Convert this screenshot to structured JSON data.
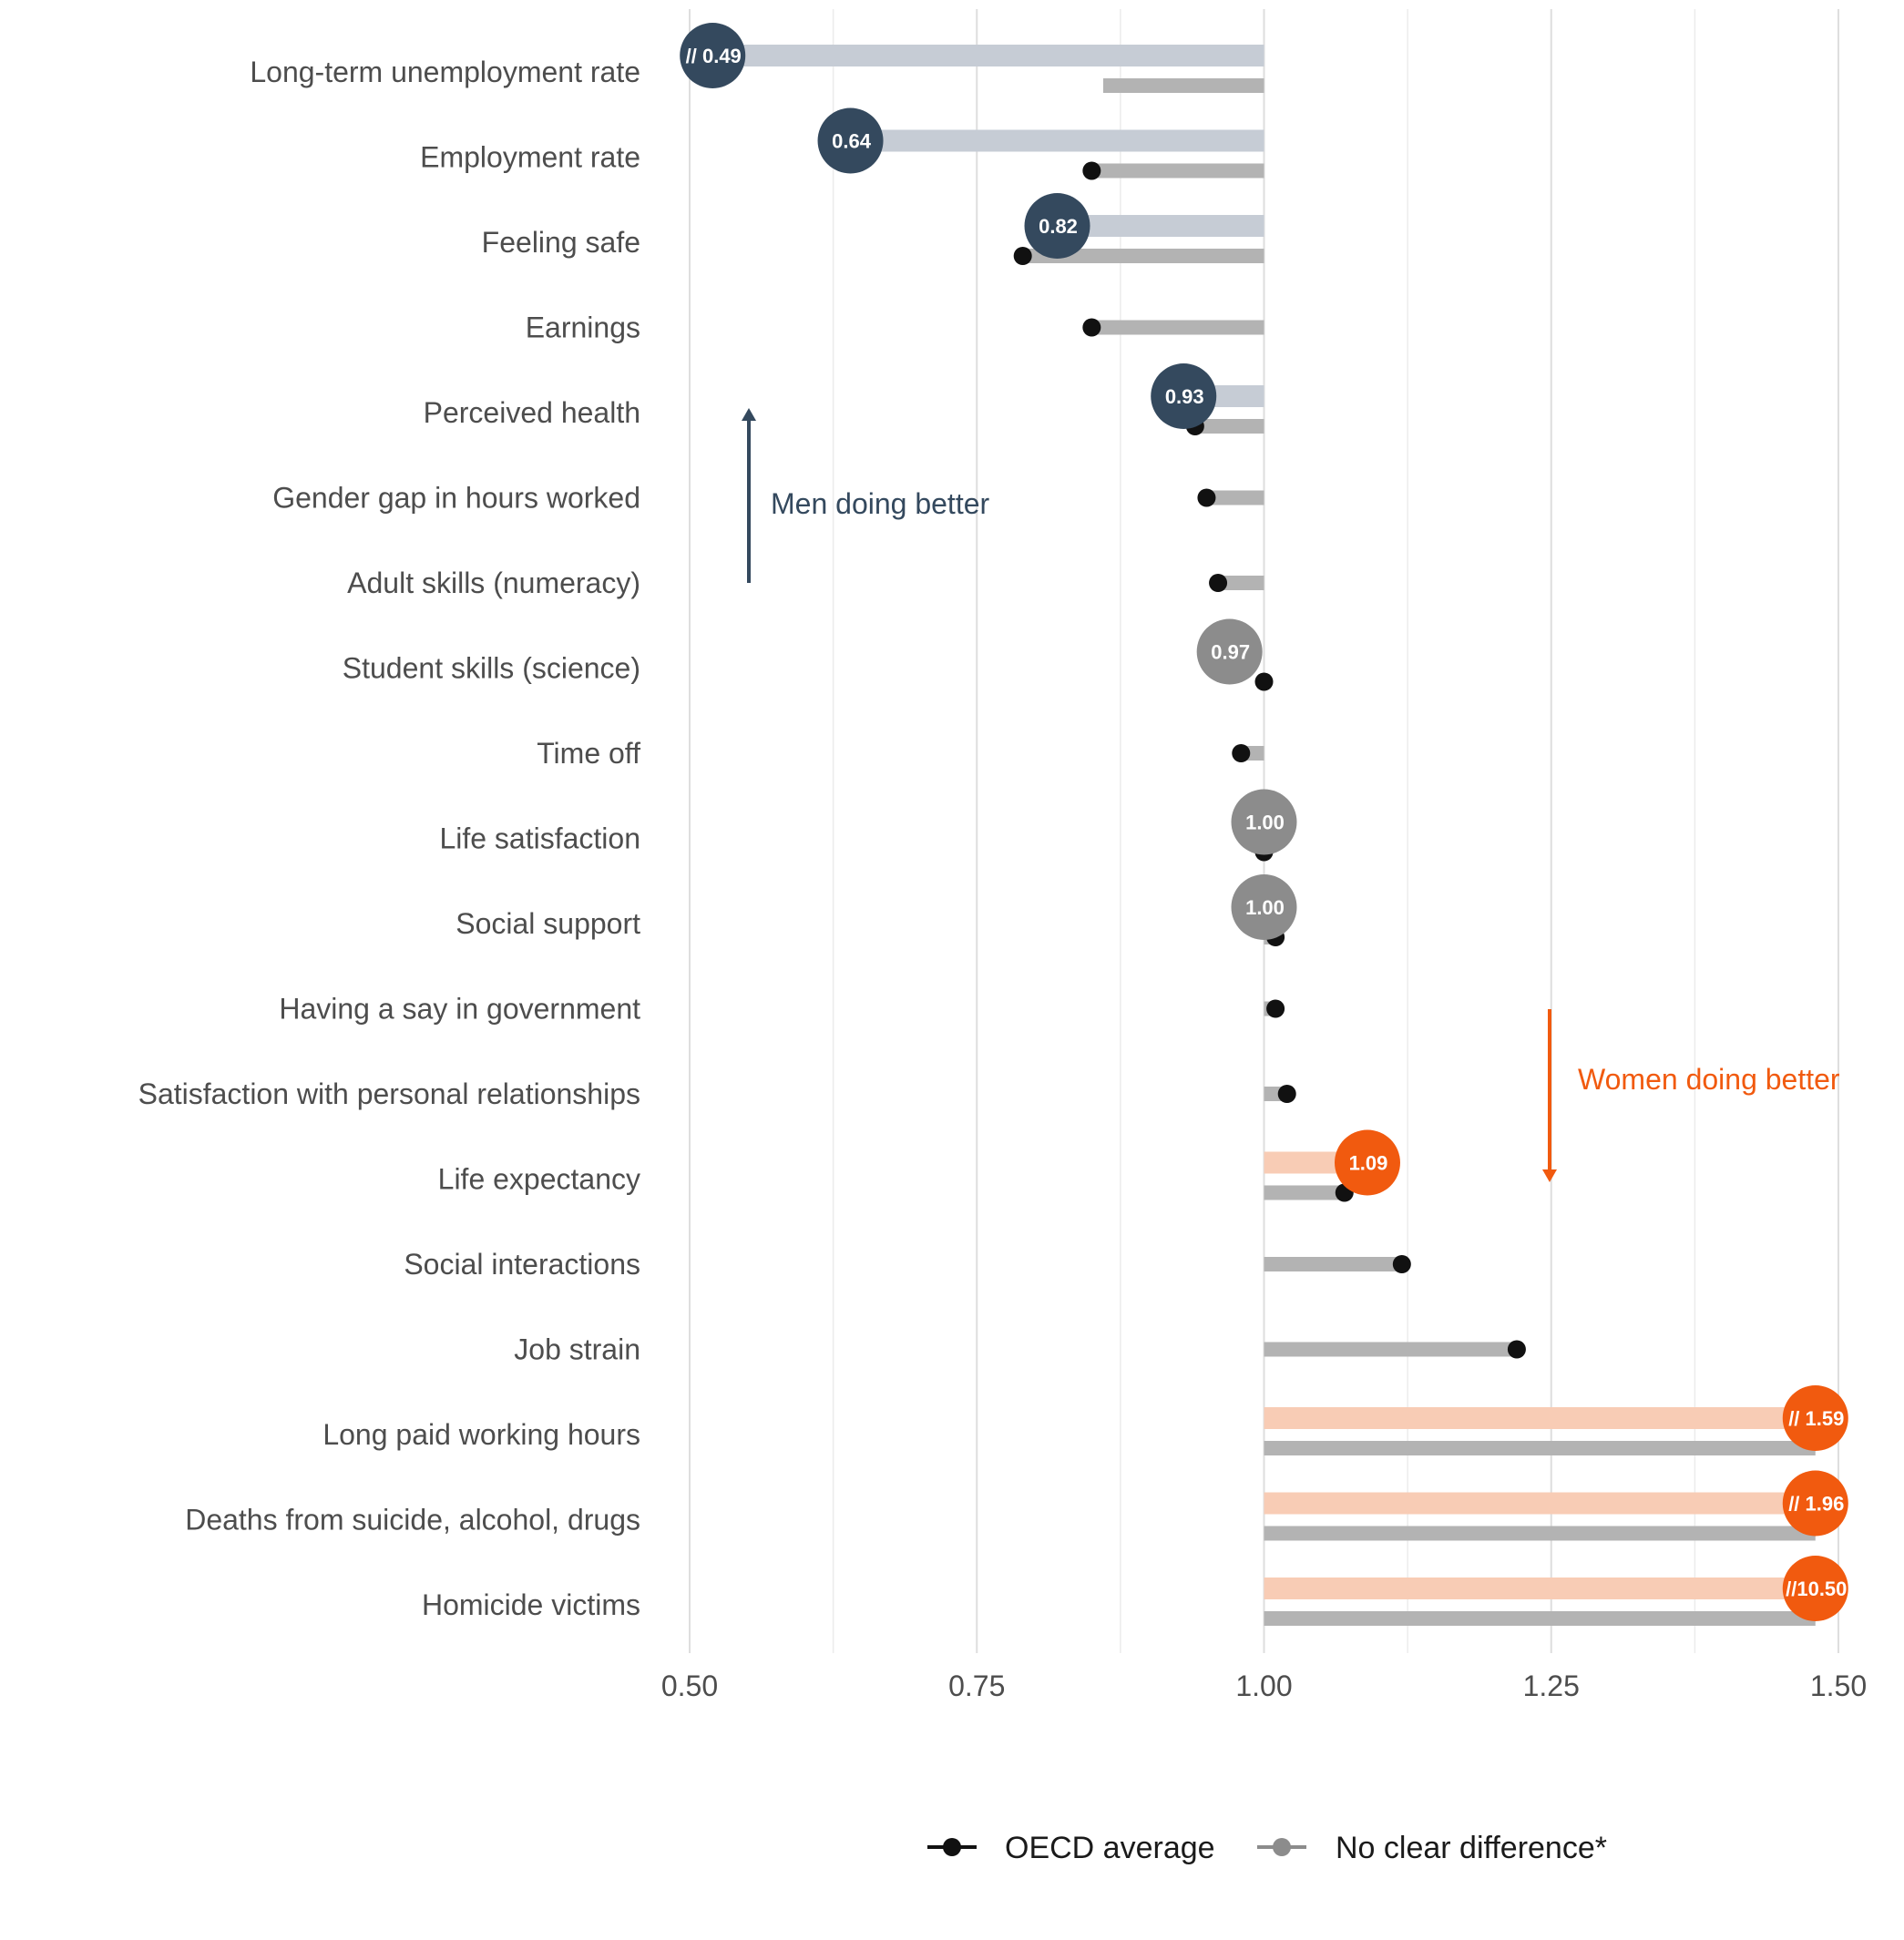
{
  "chart_data": {
    "type": "dot",
    "x_ticks": [
      "0.50",
      "0.75",
      "1.00",
      "1.25",
      "1.50"
    ],
    "xlim": [
      0.5,
      1.5
    ],
    "grid": true,
    "colors": {
      "men_better": "#34495e",
      "men_better_bar": "#c6ccd5",
      "women_better": "#f15a0f",
      "women_better_bar": "#f8ccb5",
      "no_difference": "#8c8c8c",
      "oecd_bar": "#b3b3b3",
      "oecd_dot": "#111111"
    },
    "rows": [
      {
        "label": "Long-term unemployment rate",
        "value": 0.49,
        "display": "// 0.49",
        "status": "men_better",
        "oecd": 0.86,
        "break": true
      },
      {
        "label": "Employment rate",
        "value": 0.64,
        "display": "0.64",
        "status": "men_better",
        "oecd": 0.85
      },
      {
        "label": "Feeling safe",
        "value": 0.82,
        "display": "0.82",
        "status": "men_better",
        "oecd": 0.79
      },
      {
        "label": "Earnings",
        "value": null,
        "display": "",
        "status": "none",
        "oecd": 0.85
      },
      {
        "label": "Perceived health",
        "value": 0.93,
        "display": "0.93",
        "status": "men_better",
        "oecd": 0.94
      },
      {
        "label": "Gender gap in hours worked",
        "value": null,
        "display": "",
        "status": "none",
        "oecd": 0.95
      },
      {
        "label": "Adult skills (numeracy)",
        "value": null,
        "display": "",
        "status": "none",
        "oecd": 0.96
      },
      {
        "label": "Student skills (science)",
        "value": 0.97,
        "display": "0.97",
        "status": "no_difference",
        "oecd": 1.0
      },
      {
        "label": "Time off",
        "value": null,
        "display": "",
        "status": "none",
        "oecd": 0.98
      },
      {
        "label": "Life satisfaction",
        "value": 1.0,
        "display": "1.00",
        "status": "no_difference",
        "oecd": 1.0
      },
      {
        "label": "Social support",
        "value": 1.0,
        "display": "1.00",
        "status": "no_difference",
        "oecd": 1.01
      },
      {
        "label": "Having a say in government",
        "value": null,
        "display": "",
        "status": "none",
        "oecd": 1.01
      },
      {
        "label": "Satisfaction with personal relationships",
        "value": null,
        "display": "",
        "status": "none",
        "oecd": 1.02
      },
      {
        "label": "Life expectancy ",
        "value": 1.09,
        "display": "1.09",
        "status": "women_better",
        "oecd": 1.07
      },
      {
        "label": "Social interactions",
        "value": null,
        "display": "",
        "status": "none",
        "oecd": 1.12
      },
      {
        "label": "Job strain",
        "value": null,
        "display": "",
        "status": "none",
        "oecd": 1.22
      },
      {
        "label": "Long paid working hours",
        "value": 1.59,
        "display": "// 1.59",
        "status": "women_better",
        "oecd": 1.48,
        "break": true
      },
      {
        "label": "Deaths from suicide, alcohol, drugs",
        "value": 1.96,
        "display": "// 1.96",
        "status": "women_better",
        "oecd": 1.48,
        "break": true
      },
      {
        "label": "Homicide victims",
        "value": 10.5,
        "display": "//10.50",
        "status": "women_better",
        "oecd": 1.48,
        "break": true
      }
    ],
    "annotations": [
      {
        "text": "Men doing better",
        "color": "#34495e",
        "arrow": "up"
      },
      {
        "text": "Women doing better",
        "color": "#f15a0f",
        "arrow": "down"
      }
    ],
    "legend": [
      {
        "label": "OECD average",
        "color": "#111111"
      },
      {
        "label": "No clear difference*",
        "color": "#8c8c8c"
      }
    ],
    "legend_position": "bottom"
  }
}
